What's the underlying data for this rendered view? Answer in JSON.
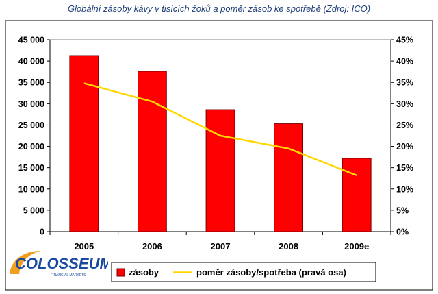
{
  "title": "Globální zásoby kávy v tisících žoků a poměr zásob ke spotřebě  (Zdroj: ICO)",
  "logo": {
    "text": "COLOSSEUM",
    "subtext": "FINANCIAL MARKETS"
  },
  "colors": {
    "bars": "#ff0000",
    "bar_edge": "#7a0000",
    "line": "#ffd700",
    "plot_bg": "#ffffff"
  },
  "chart_data": {
    "type": "bar",
    "categories": [
      "2005",
      "2006",
      "2007",
      "2008",
      "2009e"
    ],
    "left_axis": {
      "ylim": [
        0,
        45000
      ],
      "ticks": [
        0,
        5000,
        10000,
        15000,
        20000,
        25000,
        30000,
        35000,
        40000,
        45000
      ],
      "tick_labels": [
        "0",
        "5 000",
        "10 000",
        "15 000",
        "20 000",
        "25 000",
        "30 000",
        "35 000",
        "40 000",
        "45 000"
      ]
    },
    "right_axis": {
      "ylim": [
        0,
        45
      ],
      "ticks": [
        0,
        5,
        10,
        15,
        20,
        25,
        30,
        35,
        40,
        45
      ],
      "tick_labels": [
        "0%",
        "5%",
        "10%",
        "15%",
        "20%",
        "25%",
        "30%",
        "35%",
        "40%",
        "45%"
      ]
    },
    "series": [
      {
        "name": "zásoby",
        "kind": "bar",
        "axis": "left",
        "values": [
          41300,
          37600,
          28600,
          25300,
          17200
        ]
      },
      {
        "name": "poměr zásoby/spotřeba (pravá osa)",
        "kind": "line",
        "axis": "right",
        "values": [
          34.8,
          30.5,
          22.5,
          19.5,
          13.2
        ]
      }
    ],
    "grid": false,
    "legend": "bottom"
  }
}
